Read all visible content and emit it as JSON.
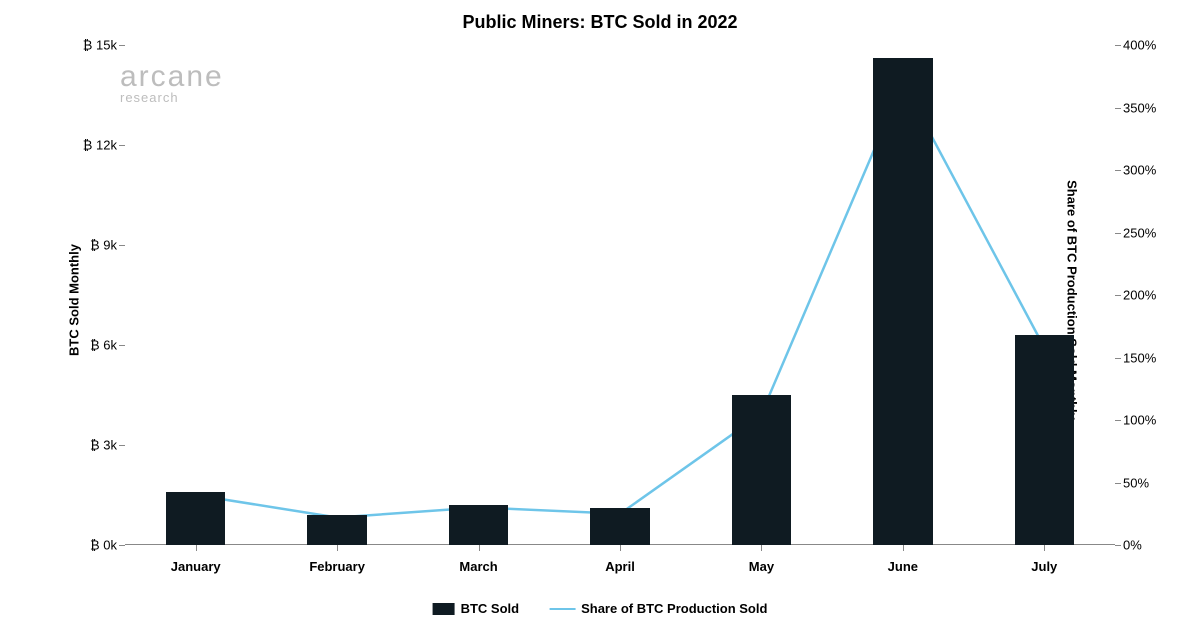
{
  "chart": {
    "title": "Public Miners: BTC Sold in 2022",
    "type": "bar+line",
    "background_color": "#ffffff",
    "watermark": {
      "brand": "arcane",
      "sub": "research",
      "color": "#bdbdbd"
    },
    "categories": [
      "January",
      "February",
      "March",
      "April",
      "May",
      "June",
      "July"
    ],
    "bars": {
      "label": "BTC Sold",
      "values": [
        1600,
        900,
        1200,
        1100,
        4500,
        14600,
        6300
      ],
      "color": "#0f1b22",
      "width_ratio": 0.42
    },
    "line": {
      "label": "Share of BTC Production Sold",
      "values": [
        40,
        22,
        30,
        25,
        105,
        370,
        158
      ],
      "color": "#6ec5e9",
      "stroke_width": 2.5
    },
    "y_left": {
      "label": "BTC Sold Monthly",
      "min": 0,
      "max": 15000,
      "tick_step": 3000,
      "tick_prefix": "₿ ",
      "tick_labels": [
        "0k",
        "3k",
        "6k",
        "9k",
        "12k",
        "15k"
      ],
      "label_fontsize": 13
    },
    "y_right": {
      "label": "Share of BTC Production Sold Monthly",
      "min": 0,
      "max": 400,
      "tick_step": 50,
      "tick_suffix": "%",
      "label_fontsize": 13
    },
    "axis_color": "#888888",
    "tick_color": "#888888",
    "text_color": "#000000",
    "title_fontsize": 18,
    "tick_fontsize": 13
  }
}
